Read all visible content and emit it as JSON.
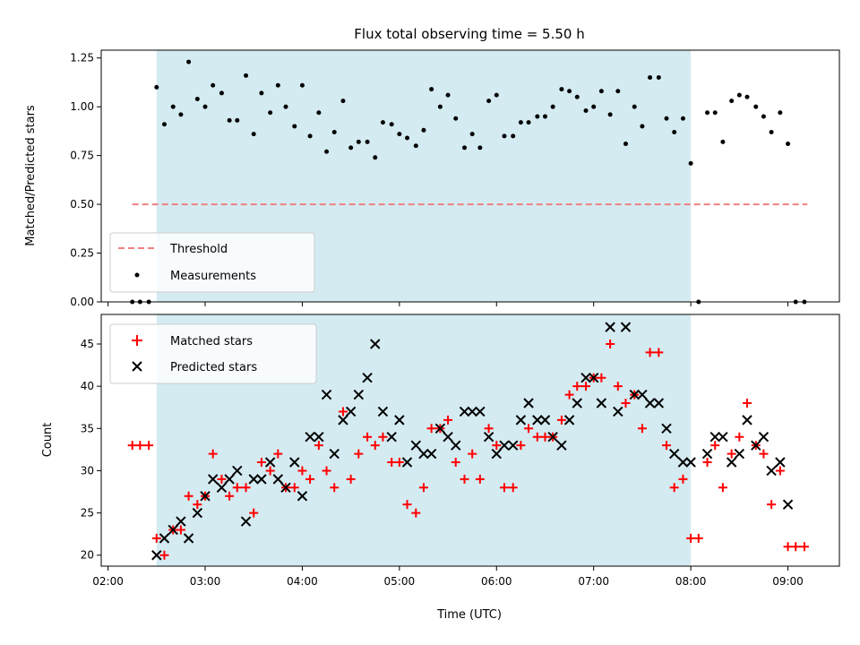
{
  "colors": {
    "threshold": "#f08080",
    "measurement": "#000000",
    "matched": "#ff0000",
    "predicted": "#000000",
    "observing_band": "#add8e6"
  },
  "chart_data": [
    {
      "type": "scatter",
      "title": "Flux total observing time = 5.50 h",
      "xlabel": "",
      "ylabel": "Matched/Predicted stars",
      "ylim": [
        0.0,
        1.29
      ],
      "yticks": [
        0.0,
        0.25,
        0.5,
        0.75,
        1.0,
        1.25
      ],
      "ytick_labels": [
        "0.00",
        "0.25",
        "0.50",
        "0.75",
        "1.00",
        "1.25"
      ],
      "xlim_hours": [
        1.93,
        9.53
      ],
      "shaded_span_hours": [
        2.5,
        8.0
      ],
      "legend_position": "lower-left",
      "threshold": {
        "name": "Threshold",
        "value": 0.5,
        "x_range_hours": [
          2.25,
          9.2
        ]
      },
      "measurements_name": "Measurements",
      "measurements": {
        "x_hours": [
          2.25,
          2.33,
          2.42,
          2.5,
          2.58,
          2.67,
          2.75,
          2.83,
          2.92,
          3.0,
          3.08,
          3.17,
          3.25,
          3.33,
          3.42,
          3.5,
          3.58,
          3.67,
          3.75,
          3.83,
          3.92,
          4.0,
          4.08,
          4.17,
          4.25,
          4.33,
          4.42,
          4.5,
          4.58,
          4.67,
          4.75,
          4.83,
          4.92,
          5.0,
          5.08,
          5.17,
          5.25,
          5.33,
          5.42,
          5.5,
          5.58,
          5.67,
          5.75,
          5.83,
          5.92,
          6.0,
          6.08,
          6.17,
          6.25,
          6.33,
          6.42,
          6.5,
          6.58,
          6.67,
          6.75,
          6.83,
          6.92,
          7.0,
          7.08,
          7.17,
          7.25,
          7.33,
          7.42,
          7.5,
          7.58,
          7.67,
          7.75,
          7.83,
          7.92,
          8.0,
          8.08,
          8.17,
          8.25,
          8.33,
          8.42,
          8.5,
          8.58,
          8.67,
          8.75,
          8.83,
          8.92,
          9.0,
          9.08,
          9.17
        ],
        "y": [
          0.0,
          0.0,
          0.0,
          1.1,
          0.91,
          1.0,
          0.96,
          1.23,
          1.04,
          1.0,
          1.11,
          1.07,
          0.93,
          0.93,
          1.16,
          0.86,
          1.07,
          0.97,
          1.11,
          1.0,
          0.9,
          1.11,
          0.85,
          0.97,
          0.77,
          0.87,
          1.03,
          0.79,
          0.82,
          0.82,
          0.74,
          0.92,
          0.91,
          0.86,
          0.84,
          0.8,
          0.88,
          1.09,
          1.0,
          1.06,
          0.94,
          0.79,
          0.86,
          0.79,
          1.03,
          1.06,
          0.85,
          0.85,
          0.92,
          0.92,
          0.95,
          0.95,
          1.0,
          1.09,
          1.08,
          1.05,
          0.98,
          1.0,
          1.08,
          0.96,
          1.08,
          0.81,
          1.0,
          0.9,
          1.15,
          1.15,
          0.94,
          0.87,
          0.94,
          0.71,
          0.0,
          0.97,
          0.97,
          0.82,
          1.03,
          1.06,
          1.05,
          1.0,
          0.95,
          0.87,
          0.97,
          0.81,
          0.0,
          0.0
        ]
      }
    },
    {
      "type": "scatter",
      "title": "",
      "xlabel": "Time (UTC)",
      "ylabel": "Count",
      "ylim": [
        18.7,
        48.5
      ],
      "yticks": [
        20,
        25,
        30,
        35,
        40,
        45
      ],
      "xlim_hours": [
        1.93,
        9.53
      ],
      "xticks_hours": [
        2,
        3,
        4,
        5,
        6,
        7,
        8,
        9
      ],
      "xtick_labels": [
        "02:00",
        "03:00",
        "04:00",
        "05:00",
        "06:00",
        "07:00",
        "08:00",
        "09:00"
      ],
      "shaded_span_hours": [
        2.5,
        8.0
      ],
      "legend_position": "upper-left",
      "matched_name": "Matched stars",
      "predicted_name": "Predicted stars",
      "matched": {
        "x_hours": [
          2.25,
          2.33,
          2.42,
          2.5,
          2.58,
          2.67,
          2.75,
          2.83,
          2.92,
          3.0,
          3.08,
          3.17,
          3.25,
          3.33,
          3.42,
          3.5,
          3.58,
          3.67,
          3.75,
          3.83,
          3.92,
          4.0,
          4.08,
          4.17,
          4.25,
          4.33,
          4.42,
          4.5,
          4.58,
          4.67,
          4.75,
          4.83,
          4.92,
          5.0,
          5.08,
          5.17,
          5.25,
          5.33,
          5.42,
          5.5,
          5.58,
          5.67,
          5.75,
          5.83,
          5.92,
          6.0,
          6.08,
          6.17,
          6.25,
          6.33,
          6.42,
          6.5,
          6.58,
          6.67,
          6.75,
          6.83,
          6.92,
          7.0,
          7.08,
          7.17,
          7.25,
          7.33,
          7.42,
          7.5,
          7.58,
          7.67,
          7.75,
          7.83,
          7.92,
          8.0,
          8.08,
          8.17,
          8.25,
          8.33,
          8.42,
          8.5,
          8.58,
          8.67,
          8.75,
          8.83,
          8.92,
          9.0,
          9.08,
          9.17
        ],
        "y": [
          33,
          33,
          33,
          22,
          20,
          23,
          23,
          27,
          26,
          27,
          32,
          29,
          27,
          28,
          28,
          25,
          31,
          30,
          32,
          28,
          28,
          30,
          29,
          33,
          30,
          28,
          37,
          29,
          32,
          34,
          33,
          34,
          31,
          31,
          26,
          25,
          28,
          35,
          35,
          36,
          31,
          29,
          32,
          29,
          35,
          33,
          28,
          28,
          33,
          35,
          34,
          34,
          34,
          36,
          39,
          40,
          40,
          41,
          41,
          45,
          40,
          38,
          39,
          35,
          44,
          44,
          33,
          28,
          29,
          22,
          22,
          31,
          33,
          28,
          32,
          34,
          38,
          33,
          32,
          26,
          30,
          21,
          21,
          21
        ]
      },
      "predicted": {
        "x_hours": [
          2.5,
          2.58,
          2.67,
          2.75,
          2.83,
          2.92,
          3.0,
          3.08,
          3.17,
          3.25,
          3.33,
          3.42,
          3.5,
          3.58,
          3.67,
          3.75,
          3.83,
          3.92,
          4.0,
          4.08,
          4.17,
          4.25,
          4.33,
          4.42,
          4.5,
          4.58,
          4.67,
          4.75,
          4.83,
          4.92,
          5.0,
          5.08,
          5.17,
          5.25,
          5.33,
          5.42,
          5.5,
          5.58,
          5.67,
          5.75,
          5.83,
          5.92,
          6.0,
          6.08,
          6.17,
          6.25,
          6.33,
          6.42,
          6.5,
          6.58,
          6.67,
          6.75,
          6.83,
          6.92,
          7.0,
          7.08,
          7.17,
          7.25,
          7.33,
          7.42,
          7.5,
          7.58,
          7.67,
          7.75,
          7.83,
          7.92,
          8.0,
          8.17,
          8.25,
          8.33,
          8.42,
          8.5,
          8.58,
          8.67,
          8.75,
          8.83,
          8.92,
          9.0
        ],
        "y": [
          20,
          22,
          23,
          24,
          22,
          25,
          27,
          29,
          28,
          29,
          30,
          24,
          29,
          29,
          31,
          29,
          28,
          31,
          27,
          34,
          34,
          39,
          32,
          36,
          37,
          39,
          41,
          45,
          37,
          34,
          36,
          31,
          33,
          32,
          32,
          35,
          34,
          33,
          37,
          37,
          37,
          34,
          32,
          33,
          33,
          36,
          38,
          36,
          36,
          34,
          33,
          36,
          38,
          41,
          41,
          38,
          47,
          37,
          47,
          39,
          39,
          38,
          38,
          35,
          32,
          31,
          31,
          32,
          34,
          34,
          31,
          32,
          36,
          33,
          34,
          30,
          31,
          26
        ]
      }
    }
  ]
}
